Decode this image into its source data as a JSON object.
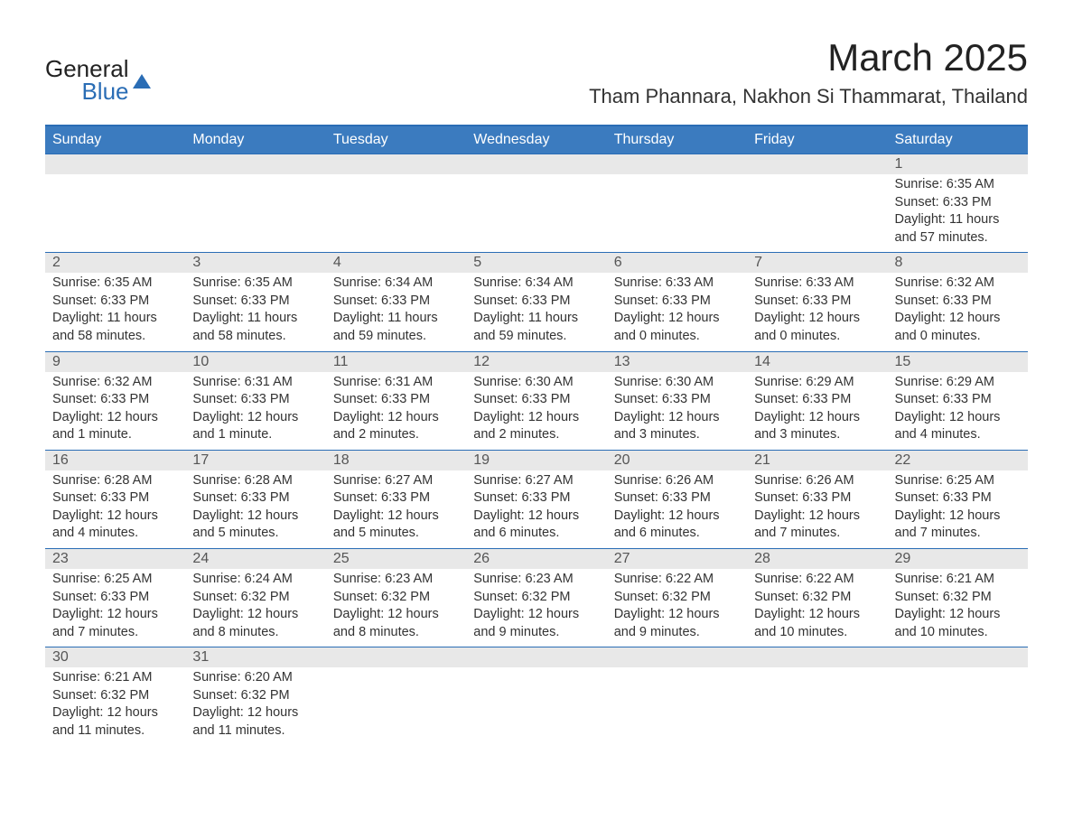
{
  "logo": {
    "line1": "General",
    "line2": "Blue",
    "line1_color": "#222222",
    "line2_color": "#2a6db5",
    "sail_color": "#2a6db5"
  },
  "title": {
    "month": "March 2025",
    "location": "Tham Phannara, Nakhon Si Thammarat, Thailand"
  },
  "colors": {
    "header_bg": "#3b7bbf",
    "header_text": "#ffffff",
    "rule": "#2a6db5",
    "daynum_bg": "#e8e8e8",
    "daynum_text": "#555555",
    "body_text": "#333333",
    "page_bg": "#ffffff"
  },
  "typography": {
    "month_fontsize": 42,
    "location_fontsize": 22,
    "header_fontsize": 16,
    "daynum_fontsize": 16,
    "cell_fontsize": 14.5
  },
  "layout": {
    "type": "table",
    "columns": 7,
    "rows": 6
  },
  "weekdays": [
    "Sunday",
    "Monday",
    "Tuesday",
    "Wednesday",
    "Thursday",
    "Friday",
    "Saturday"
  ],
  "weeks": [
    [
      null,
      null,
      null,
      null,
      null,
      null,
      {
        "n": "1",
        "sunrise": "Sunrise: 6:35 AM",
        "sunset": "Sunset: 6:33 PM",
        "daylight": "Daylight: 11 hours and 57 minutes."
      }
    ],
    [
      {
        "n": "2",
        "sunrise": "Sunrise: 6:35 AM",
        "sunset": "Sunset: 6:33 PM",
        "daylight": "Daylight: 11 hours and 58 minutes."
      },
      {
        "n": "3",
        "sunrise": "Sunrise: 6:35 AM",
        "sunset": "Sunset: 6:33 PM",
        "daylight": "Daylight: 11 hours and 58 minutes."
      },
      {
        "n": "4",
        "sunrise": "Sunrise: 6:34 AM",
        "sunset": "Sunset: 6:33 PM",
        "daylight": "Daylight: 11 hours and 59 minutes."
      },
      {
        "n": "5",
        "sunrise": "Sunrise: 6:34 AM",
        "sunset": "Sunset: 6:33 PM",
        "daylight": "Daylight: 11 hours and 59 minutes."
      },
      {
        "n": "6",
        "sunrise": "Sunrise: 6:33 AM",
        "sunset": "Sunset: 6:33 PM",
        "daylight": "Daylight: 12 hours and 0 minutes."
      },
      {
        "n": "7",
        "sunrise": "Sunrise: 6:33 AM",
        "sunset": "Sunset: 6:33 PM",
        "daylight": "Daylight: 12 hours and 0 minutes."
      },
      {
        "n": "8",
        "sunrise": "Sunrise: 6:32 AM",
        "sunset": "Sunset: 6:33 PM",
        "daylight": "Daylight: 12 hours and 0 minutes."
      }
    ],
    [
      {
        "n": "9",
        "sunrise": "Sunrise: 6:32 AM",
        "sunset": "Sunset: 6:33 PM",
        "daylight": "Daylight: 12 hours and 1 minute."
      },
      {
        "n": "10",
        "sunrise": "Sunrise: 6:31 AM",
        "sunset": "Sunset: 6:33 PM",
        "daylight": "Daylight: 12 hours and 1 minute."
      },
      {
        "n": "11",
        "sunrise": "Sunrise: 6:31 AM",
        "sunset": "Sunset: 6:33 PM",
        "daylight": "Daylight: 12 hours and 2 minutes."
      },
      {
        "n": "12",
        "sunrise": "Sunrise: 6:30 AM",
        "sunset": "Sunset: 6:33 PM",
        "daylight": "Daylight: 12 hours and 2 minutes."
      },
      {
        "n": "13",
        "sunrise": "Sunrise: 6:30 AM",
        "sunset": "Sunset: 6:33 PM",
        "daylight": "Daylight: 12 hours and 3 minutes."
      },
      {
        "n": "14",
        "sunrise": "Sunrise: 6:29 AM",
        "sunset": "Sunset: 6:33 PM",
        "daylight": "Daylight: 12 hours and 3 minutes."
      },
      {
        "n": "15",
        "sunrise": "Sunrise: 6:29 AM",
        "sunset": "Sunset: 6:33 PM",
        "daylight": "Daylight: 12 hours and 4 minutes."
      }
    ],
    [
      {
        "n": "16",
        "sunrise": "Sunrise: 6:28 AM",
        "sunset": "Sunset: 6:33 PM",
        "daylight": "Daylight: 12 hours and 4 minutes."
      },
      {
        "n": "17",
        "sunrise": "Sunrise: 6:28 AM",
        "sunset": "Sunset: 6:33 PM",
        "daylight": "Daylight: 12 hours and 5 minutes."
      },
      {
        "n": "18",
        "sunrise": "Sunrise: 6:27 AM",
        "sunset": "Sunset: 6:33 PM",
        "daylight": "Daylight: 12 hours and 5 minutes."
      },
      {
        "n": "19",
        "sunrise": "Sunrise: 6:27 AM",
        "sunset": "Sunset: 6:33 PM",
        "daylight": "Daylight: 12 hours and 6 minutes."
      },
      {
        "n": "20",
        "sunrise": "Sunrise: 6:26 AM",
        "sunset": "Sunset: 6:33 PM",
        "daylight": "Daylight: 12 hours and 6 minutes."
      },
      {
        "n": "21",
        "sunrise": "Sunrise: 6:26 AM",
        "sunset": "Sunset: 6:33 PM",
        "daylight": "Daylight: 12 hours and 7 minutes."
      },
      {
        "n": "22",
        "sunrise": "Sunrise: 6:25 AM",
        "sunset": "Sunset: 6:33 PM",
        "daylight": "Daylight: 12 hours and 7 minutes."
      }
    ],
    [
      {
        "n": "23",
        "sunrise": "Sunrise: 6:25 AM",
        "sunset": "Sunset: 6:33 PM",
        "daylight": "Daylight: 12 hours and 7 minutes."
      },
      {
        "n": "24",
        "sunrise": "Sunrise: 6:24 AM",
        "sunset": "Sunset: 6:32 PM",
        "daylight": "Daylight: 12 hours and 8 minutes."
      },
      {
        "n": "25",
        "sunrise": "Sunrise: 6:23 AM",
        "sunset": "Sunset: 6:32 PM",
        "daylight": "Daylight: 12 hours and 8 minutes."
      },
      {
        "n": "26",
        "sunrise": "Sunrise: 6:23 AM",
        "sunset": "Sunset: 6:32 PM",
        "daylight": "Daylight: 12 hours and 9 minutes."
      },
      {
        "n": "27",
        "sunrise": "Sunrise: 6:22 AM",
        "sunset": "Sunset: 6:32 PM",
        "daylight": "Daylight: 12 hours and 9 minutes."
      },
      {
        "n": "28",
        "sunrise": "Sunrise: 6:22 AM",
        "sunset": "Sunset: 6:32 PM",
        "daylight": "Daylight: 12 hours and 10 minutes."
      },
      {
        "n": "29",
        "sunrise": "Sunrise: 6:21 AM",
        "sunset": "Sunset: 6:32 PM",
        "daylight": "Daylight: 12 hours and 10 minutes."
      }
    ],
    [
      {
        "n": "30",
        "sunrise": "Sunrise: 6:21 AM",
        "sunset": "Sunset: 6:32 PM",
        "daylight": "Daylight: 12 hours and 11 minutes."
      },
      {
        "n": "31",
        "sunrise": "Sunrise: 6:20 AM",
        "sunset": "Sunset: 6:32 PM",
        "daylight": "Daylight: 12 hours and 11 minutes."
      },
      null,
      null,
      null,
      null,
      null
    ]
  ]
}
